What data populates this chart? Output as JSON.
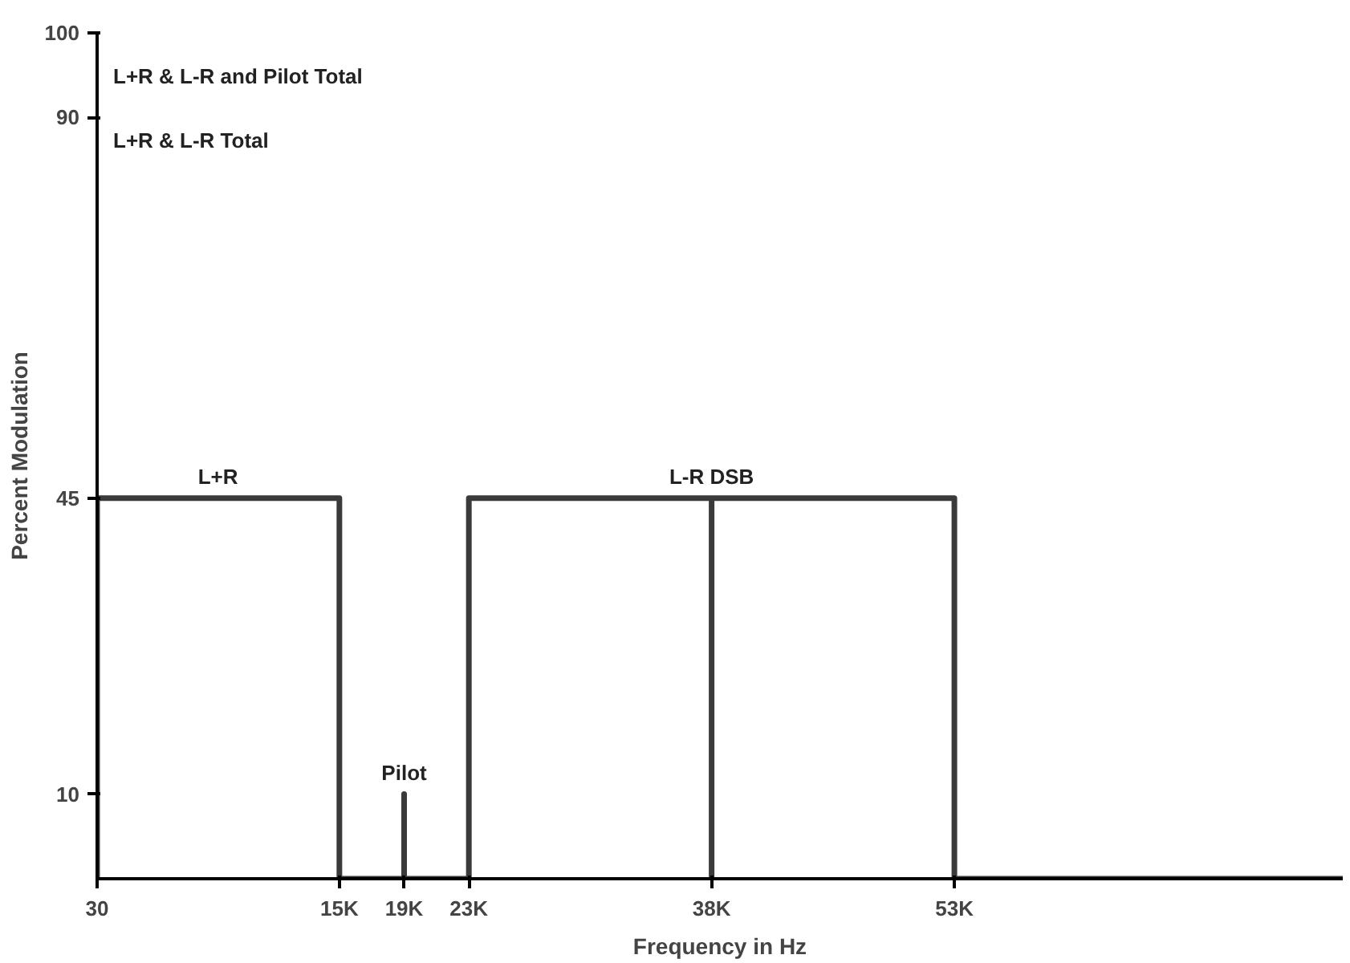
{
  "chart_data": {
    "type": "line",
    "xlabel": "Frequency in Hz",
    "ylabel": "Percent Modulation",
    "x": [
      30,
      30,
      15000,
      15000,
      19000,
      19000,
      19000,
      23000,
      23000,
      38000,
      38000,
      38000,
      53000,
      53000,
      77000
    ],
    "series": [
      {
        "color": "#3a3a3a",
        "values": [
          0,
          45,
          45,
          0,
          0,
          10,
          0,
          0,
          45,
          45,
          0,
          45,
          45,
          0,
          0
        ]
      }
    ],
    "xlim": [
      30,
      77000
    ],
    "ylim": [
      0,
      100
    ],
    "xticks": [
      30,
      {
        "value": 15000,
        "label": "15K"
      },
      {
        "value": 19000,
        "label": "19K"
      },
      {
        "value": 23000,
        "label": "23K"
      },
      {
        "value": 38000,
        "label": "38K"
      },
      {
        "value": 53000,
        "label": "53K"
      }
    ],
    "yticks": [
      10,
      45,
      90,
      100
    ],
    "grid": false,
    "marker": "none",
    "line_style": "solid",
    "annotations": [
      "L+R & L-R and Pilot Total",
      "L+R & L-R Total",
      {
        "text": "L+R",
        "x": 7500,
        "y": 45
      },
      {
        "text": "Pilot",
        "x": 19000,
        "y": 10
      },
      {
        "text": "L-R DSB",
        "x": 38000,
        "y": 45
      }
    ]
  }
}
